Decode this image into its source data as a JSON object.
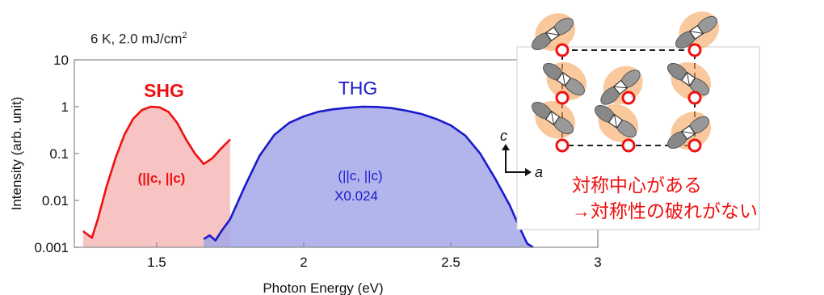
{
  "condition": {
    "prefix": "6 K, 2.0 mJ/cm",
    "sup": "2"
  },
  "chart_data": {
    "type": "area",
    "xlabel": "Photon Energy (eV)",
    "ylabel": "Intensity (arb. unit)",
    "xlim": [
      1.22,
      3.0
    ],
    "ylim": [
      0.001,
      10
    ],
    "yscale": "log",
    "x_ticks": [
      "1.5",
      "2",
      "2.5",
      "3"
    ],
    "x_tick_values": [
      1.5,
      2.0,
      2.5,
      3.0
    ],
    "y_ticks": [
      "10",
      "1",
      "0.1",
      "0.01",
      "0.001"
    ],
    "y_tick_values": [
      10,
      1,
      0.1,
      0.01,
      0.001
    ],
    "series": [
      {
        "name": "SHG",
        "color": "#ee1111",
        "fill": "#f7c0c0",
        "label_lines": [
          "(||c, ||c)"
        ],
        "x": [
          1.25,
          1.28,
          1.3,
          1.33,
          1.36,
          1.39,
          1.42,
          1.45,
          1.48,
          1.51,
          1.54,
          1.57,
          1.6,
          1.63,
          1.66,
          1.69,
          1.72,
          1.75
        ],
        "y": [
          0.0022,
          0.0016,
          0.004,
          0.02,
          0.08,
          0.25,
          0.55,
          0.85,
          1.0,
          0.97,
          0.78,
          0.45,
          0.2,
          0.1,
          0.06,
          0.08,
          0.13,
          0.2
        ]
      },
      {
        "name": "THG",
        "color": "#1a1acc",
        "fill": "#a3a8e8",
        "label_lines": [
          "(||c, ||c)",
          "X0.024"
        ],
        "x": [
          1.66,
          1.68,
          1.7,
          1.72,
          1.75,
          1.8,
          1.85,
          1.9,
          1.95,
          2.0,
          2.05,
          2.1,
          2.15,
          2.2,
          2.25,
          2.3,
          2.35,
          2.4,
          2.45,
          2.5,
          2.55,
          2.6,
          2.65,
          2.7,
          2.73,
          2.76,
          2.78
        ],
        "y": [
          0.0015,
          0.0018,
          0.0014,
          0.0022,
          0.004,
          0.02,
          0.09,
          0.25,
          0.45,
          0.62,
          0.78,
          0.88,
          0.95,
          1.0,
          0.99,
          0.93,
          0.82,
          0.7,
          0.55,
          0.4,
          0.24,
          0.1,
          0.03,
          0.008,
          0.003,
          0.0012,
          0.001
        ]
      }
    ]
  },
  "inset": {
    "axis_c": "c",
    "axis_a": "a",
    "note_line1": "対称中心がある",
    "note_line2": "→対称性の破れがない"
  }
}
